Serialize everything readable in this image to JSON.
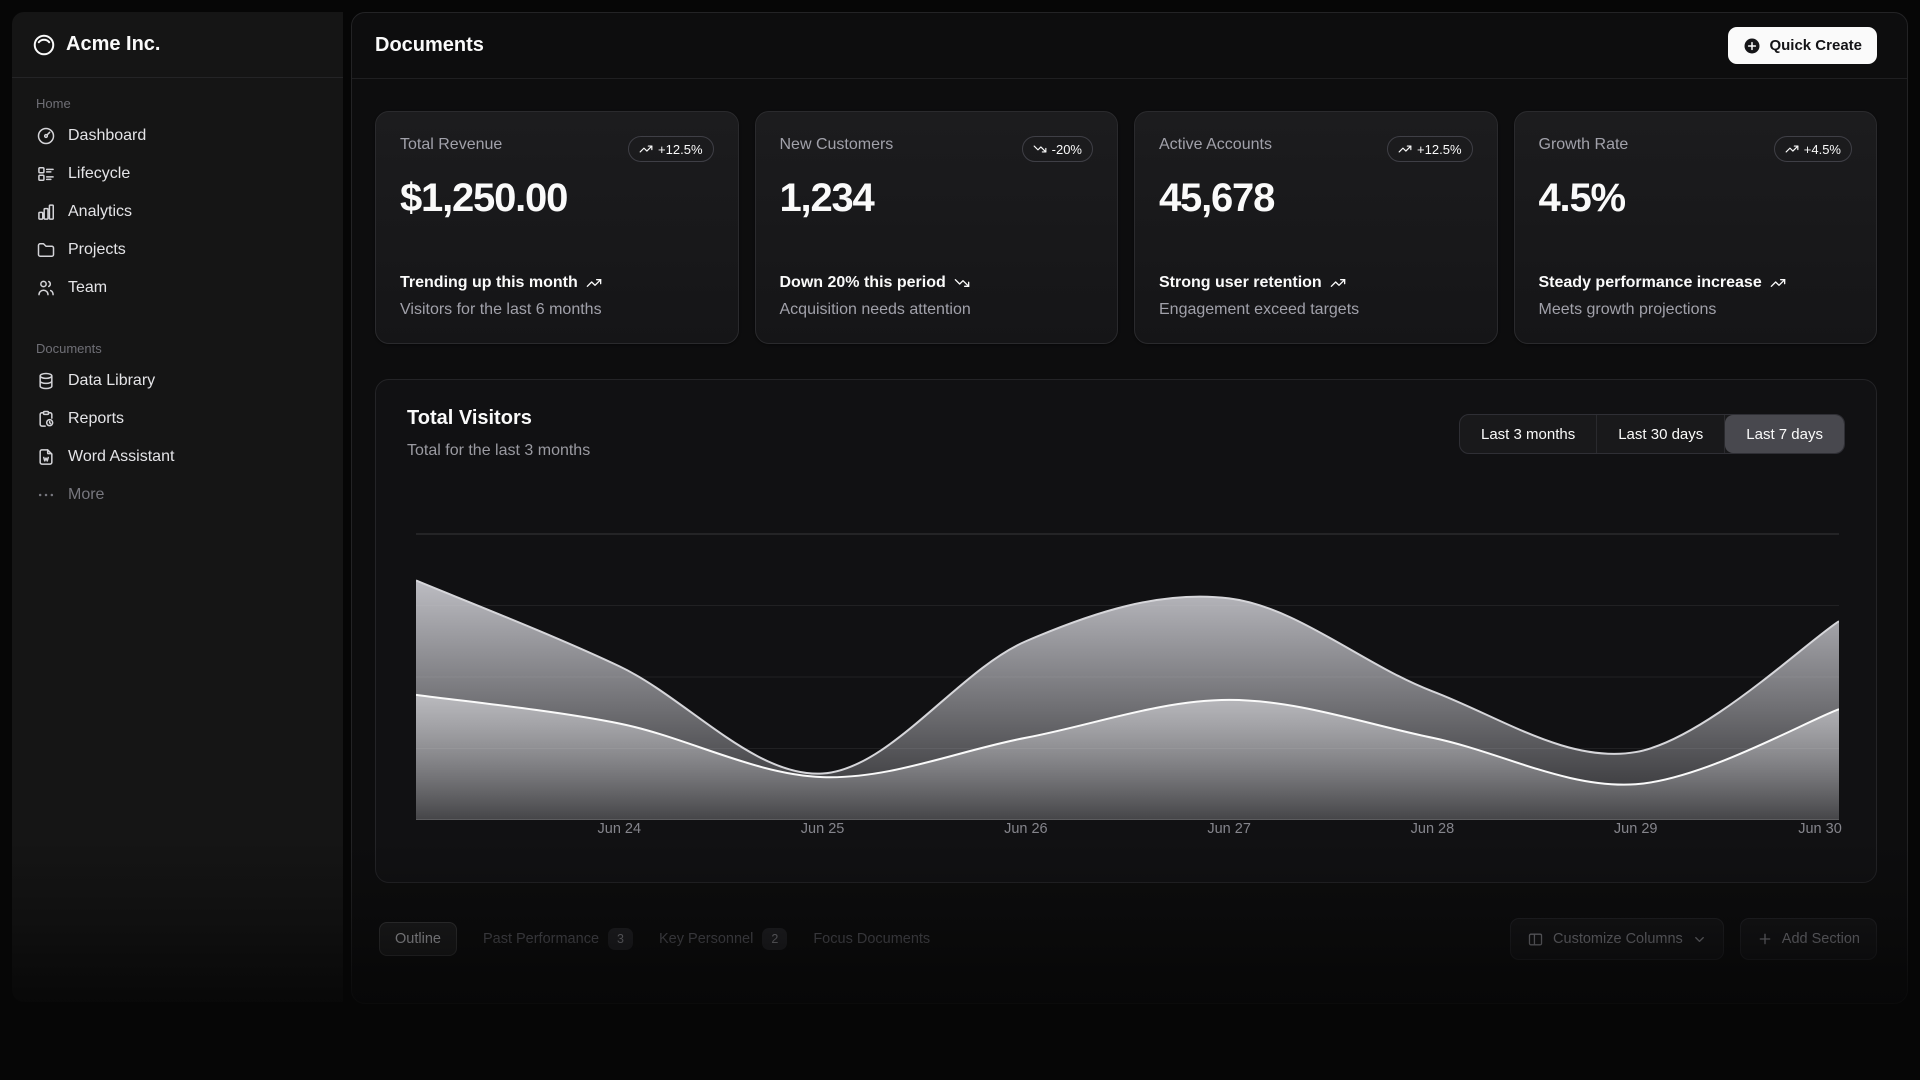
{
  "brand": {
    "name": "Acme Inc.",
    "icon": "inner-shadow-top-icon"
  },
  "sidebar": {
    "groups": [
      {
        "label": "Home",
        "items": [
          {
            "label": "Dashboard",
            "icon": "dashboard-icon"
          },
          {
            "label": "Lifecycle",
            "icon": "list-details-icon"
          },
          {
            "label": "Analytics",
            "icon": "chart-bar-icon"
          },
          {
            "label": "Projects",
            "icon": "folder-icon"
          },
          {
            "label": "Team",
            "icon": "users-icon"
          }
        ]
      },
      {
        "label": "Documents",
        "items": [
          {
            "label": "Data Library",
            "icon": "database-icon"
          },
          {
            "label": "Reports",
            "icon": "report-icon"
          },
          {
            "label": "Word Assistant",
            "icon": "file-word-icon"
          },
          {
            "label": "More",
            "icon": "dots-icon"
          }
        ]
      }
    ]
  },
  "header": {
    "title": "Documents",
    "quick_create_label": "Quick Create",
    "quick_create_icon": "circle-plus-icon"
  },
  "cards": [
    {
      "title": "Total Revenue",
      "badge": "+12.5%",
      "trend": "up",
      "value": "$1,250.00",
      "footer_primary": "Trending up this month",
      "footer_secondary": "Visitors for the last 6 months"
    },
    {
      "title": "New Customers",
      "badge": "-20%",
      "trend": "down",
      "value": "1,234",
      "footer_primary": "Down 20% this period",
      "footer_secondary": "Acquisition needs attention"
    },
    {
      "title": "Active Accounts",
      "badge": "+12.5%",
      "trend": "up",
      "value": "45,678",
      "footer_primary": "Strong user retention",
      "footer_secondary": "Engagement exceed targets"
    },
    {
      "title": "Growth Rate",
      "badge": "+4.5%",
      "trend": "up",
      "value": "4.5%",
      "footer_primary": "Steady performance increase",
      "footer_secondary": "Meets growth projections"
    }
  ],
  "chart": {
    "title": "Total Visitors",
    "subtitle": "Total for the last 3 months",
    "range_options": [
      "Last 3 months",
      "Last 30 days",
      "Last 7 days"
    ],
    "selected_range": "Last 7 days"
  },
  "chart_data": {
    "type": "area",
    "title": "Total Visitors",
    "x_ticks": [
      "Jun 24",
      "Jun 25",
      "Jun 26",
      "Jun 27",
      "Jun 28",
      "Jun 29",
      "Jun 30"
    ],
    "leading_unlabeled_points": 1,
    "series": [
      {
        "name": "visitors-back",
        "values": [
          335,
          215,
          65,
          250,
          310,
          180,
          95,
          278
        ]
      },
      {
        "name": "visitors-front",
        "values": [
          175,
          135,
          60,
          115,
          168,
          115,
          50,
          155
        ]
      }
    ],
    "ylim": [
      0,
      400
    ],
    "grid": true,
    "grid_divisions": 4,
    "legend": "none",
    "smooth": true,
    "style": {
      "grid_color": "rgba(255,255,255,0.07)",
      "top_grid_color": "rgba(255,255,255,0.16)",
      "axis_line_color": "rgba(255,255,255,0.12)",
      "series": [
        {
          "stroke": "#d6d6da",
          "fill_top": "rgba(203,203,209,0.92)",
          "fill_bottom": "rgba(203,203,209,0.14)"
        },
        {
          "stroke": "#fafafa",
          "fill_top": "rgba(240,240,244,0.55)",
          "fill_bottom": "rgba(240,240,244,0.13)"
        }
      ]
    }
  },
  "bottom_bar": {
    "tabs": [
      {
        "label": "Outline",
        "active": true
      },
      {
        "label": "Past Performance",
        "badge": "3"
      },
      {
        "label": "Key Personnel",
        "badge": "2"
      },
      {
        "label": "Focus Documents"
      }
    ],
    "customize_columns_label": "Customize Columns",
    "add_section_label": "Add Section"
  },
  "colors": {
    "background": "#060606",
    "sidebar": "#151515",
    "panel": "#0d0d0e",
    "card_border": "#2a2a2d",
    "text_primary": "#fafafa",
    "text_muted": "#a1a1aa",
    "accent_button": "#fafafa",
    "toggle_active": "#48484e"
  }
}
